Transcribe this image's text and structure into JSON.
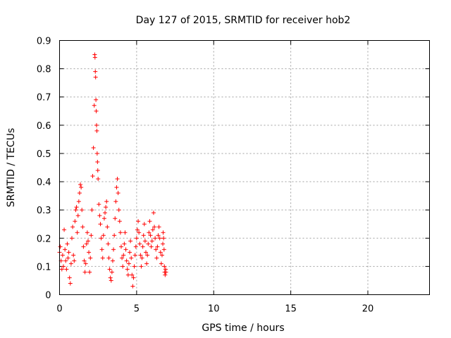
{
  "chart_data": {
    "type": "scatter",
    "title": "Day 127 of 2015, SRMTID for receiver hob2",
    "xlabel": "GPS time / hours",
    "ylabel": "SRMTID / TECUs",
    "xlim": [
      0,
      24
    ],
    "ylim": [
      0,
      0.9
    ],
    "xticks": [
      0,
      5,
      10,
      15,
      20
    ],
    "yticks": [
      0,
      0.1,
      0.2,
      0.3,
      0.4,
      0.5,
      0.6,
      0.7,
      0.8,
      0.9
    ],
    "grid": true,
    "marker": "plus",
    "color": "#ff0000",
    "series": [
      {
        "name": "hob2",
        "points": [
          [
            0.0,
            0.15
          ],
          [
            0.05,
            0.17
          ],
          [
            0.1,
            0.12
          ],
          [
            0.15,
            0.09
          ],
          [
            0.2,
            0.14
          ],
          [
            0.25,
            0.1
          ],
          [
            0.3,
            0.23
          ],
          [
            0.35,
            0.16
          ],
          [
            0.4,
            0.12
          ],
          [
            0.45,
            0.09
          ],
          [
            0.5,
            0.18
          ],
          [
            0.55,
            0.13
          ],
          [
            0.6,
            0.15
          ],
          [
            0.65,
            0.06
          ],
          [
            0.7,
            0.04
          ],
          [
            0.75,
            0.11
          ],
          [
            0.8,
            0.2
          ],
          [
            0.85,
            0.24
          ],
          [
            0.9,
            0.14
          ],
          [
            0.95,
            0.12
          ],
          [
            1.0,
            0.26
          ],
          [
            1.05,
            0.3
          ],
          [
            1.1,
            0.31
          ],
          [
            1.15,
            0.22
          ],
          [
            1.2,
            0.28
          ],
          [
            1.25,
            0.33
          ],
          [
            1.3,
            0.36
          ],
          [
            1.35,
            0.39
          ],
          [
            1.4,
            0.38
          ],
          [
            1.45,
            0.3
          ],
          [
            1.5,
            0.24
          ],
          [
            1.55,
            0.17
          ],
          [
            1.6,
            0.12
          ],
          [
            1.65,
            0.08
          ],
          [
            1.7,
            0.11
          ],
          [
            1.75,
            0.18
          ],
          [
            1.8,
            0.22
          ],
          [
            1.85,
            0.19
          ],
          [
            1.9,
            0.15
          ],
          [
            1.95,
            0.08
          ],
          [
            2.0,
            0.13
          ],
          [
            2.05,
            0.21
          ],
          [
            2.1,
            0.3
          ],
          [
            2.15,
            0.42
          ],
          [
            2.2,
            0.52
          ],
          [
            2.25,
            0.67
          ],
          [
            2.28,
            0.85
          ],
          [
            2.3,
            0.84
          ],
          [
            2.32,
            0.79
          ],
          [
            2.34,
            0.77
          ],
          [
            2.36,
            0.69
          ],
          [
            2.38,
            0.65
          ],
          [
            2.4,
            0.6
          ],
          [
            2.42,
            0.58
          ],
          [
            2.44,
            0.5
          ],
          [
            2.46,
            0.47
          ],
          [
            2.48,
            0.44
          ],
          [
            2.5,
            0.41
          ],
          [
            2.55,
            0.32
          ],
          [
            2.6,
            0.28
          ],
          [
            2.65,
            0.25
          ],
          [
            2.7,
            0.2
          ],
          [
            2.75,
            0.16
          ],
          [
            2.8,
            0.13
          ],
          [
            2.85,
            0.21
          ],
          [
            2.9,
            0.27
          ],
          [
            2.95,
            0.29
          ],
          [
            3.0,
            0.31
          ],
          [
            3.05,
            0.33
          ],
          [
            3.1,
            0.24
          ],
          [
            3.15,
            0.18
          ],
          [
            3.2,
            0.13
          ],
          [
            3.25,
            0.09
          ],
          [
            3.3,
            0.06
          ],
          [
            3.35,
            0.05
          ],
          [
            3.4,
            0.08
          ],
          [
            3.45,
            0.12
          ],
          [
            3.5,
            0.16
          ],
          [
            3.55,
            0.21
          ],
          [
            3.6,
            0.27
          ],
          [
            3.65,
            0.33
          ],
          [
            3.7,
            0.38
          ],
          [
            3.75,
            0.41
          ],
          [
            3.8,
            0.36
          ],
          [
            3.85,
            0.3
          ],
          [
            3.9,
            0.26
          ],
          [
            3.95,
            0.22
          ],
          [
            4.0,
            0.17
          ],
          [
            4.05,
            0.13
          ],
          [
            4.1,
            0.1
          ],
          [
            4.15,
            0.14
          ],
          [
            4.2,
            0.18
          ],
          [
            4.25,
            0.22
          ],
          [
            4.3,
            0.16
          ],
          [
            4.35,
            0.12
          ],
          [
            4.4,
            0.09
          ],
          [
            4.45,
            0.07
          ],
          [
            4.5,
            0.11
          ],
          [
            4.55,
            0.15
          ],
          [
            4.6,
            0.19
          ],
          [
            4.65,
            0.13
          ],
          [
            4.7,
            0.07
          ],
          [
            4.75,
            0.03
          ],
          [
            4.8,
            0.06
          ],
          [
            4.85,
            0.1
          ],
          [
            4.9,
            0.14
          ],
          [
            4.95,
            0.17
          ],
          [
            5.0,
            0.2
          ],
          [
            5.05,
            0.23
          ],
          [
            5.1,
            0.26
          ],
          [
            5.15,
            0.22
          ],
          [
            5.2,
            0.18
          ],
          [
            5.25,
            0.14
          ],
          [
            5.3,
            0.1
          ],
          [
            5.35,
            0.13
          ],
          [
            5.4,
            0.17
          ],
          [
            5.45,
            0.21
          ],
          [
            5.5,
            0.25
          ],
          [
            5.55,
            0.19
          ],
          [
            5.6,
            0.15
          ],
          [
            5.65,
            0.11
          ],
          [
            5.7,
            0.14
          ],
          [
            5.75,
            0.18
          ],
          [
            5.8,
            0.22
          ],
          [
            5.85,
            0.26
          ],
          [
            5.9,
            0.21
          ],
          [
            5.95,
            0.17
          ],
          [
            6.0,
            0.19
          ],
          [
            6.05,
            0.23
          ],
          [
            6.1,
            0.29
          ],
          [
            6.15,
            0.24
          ],
          [
            6.2,
            0.2
          ],
          [
            6.25,
            0.16
          ],
          [
            6.3,
            0.13
          ],
          [
            6.35,
            0.17
          ],
          [
            6.4,
            0.21
          ],
          [
            6.45,
            0.24
          ],
          [
            6.5,
            0.2
          ],
          [
            6.55,
            0.15
          ],
          [
            6.6,
            0.11
          ],
          [
            6.65,
            0.14
          ],
          [
            6.7,
            0.18
          ],
          [
            6.72,
            0.22
          ],
          [
            6.75,
            0.2
          ],
          [
            6.78,
            0.16
          ],
          [
            6.8,
            0.1
          ],
          [
            6.82,
            0.08
          ],
          [
            6.85,
            0.07
          ],
          [
            6.88,
            0.09
          ],
          [
            6.9,
            0.08
          ]
        ]
      }
    ]
  }
}
